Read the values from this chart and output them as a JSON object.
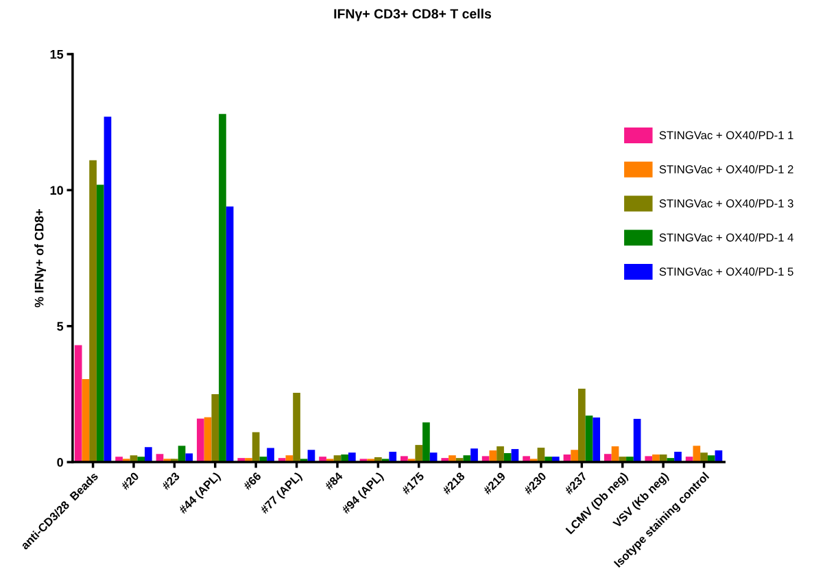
{
  "chart_data": {
    "type": "bar",
    "title": "IFNγ+ CD3+ CD8+ T cells",
    "ylabel": "% IFNγ+ of CD8+",
    "categories": [
      "anti-CD3/28  Beads",
      "#20",
      "#23",
      "#44 (APL)",
      "#66",
      "#77 (APL)",
      "#84",
      "#94 (APL)",
      "#175",
      "#218",
      "#219",
      "#230",
      "#237",
      "LCMV (Db neg)",
      "VSV (Kb neg)",
      "Isotype staining control"
    ],
    "series": [
      {
        "name": "STINGVac + OX40/PD-1 1",
        "color": "#f7198a",
        "values": [
          4.3,
          0.2,
          0.3,
          1.6,
          0.15,
          0.15,
          0.2,
          0.12,
          0.22,
          0.15,
          0.22,
          0.22,
          0.28,
          0.3,
          0.22,
          0.2
        ]
      },
      {
        "name": "STINGVac + OX40/PD-1 2",
        "color": "#ff8000",
        "values": [
          3.05,
          0.12,
          0.12,
          1.65,
          0.15,
          0.25,
          0.12,
          0.12,
          0.12,
          0.25,
          0.43,
          0.12,
          0.45,
          0.58,
          0.28,
          0.6
        ]
      },
      {
        "name": "STINGVac + OX40/PD-1 3",
        "color": "#808000",
        "values": [
          11.1,
          0.25,
          0.12,
          2.5,
          1.1,
          2.55,
          0.25,
          0.18,
          0.63,
          0.15,
          0.58,
          0.53,
          2.7,
          0.2,
          0.28,
          0.35
        ]
      },
      {
        "name": "STINGVac + OX40/PD-1 4",
        "color": "#008000",
        "values": [
          10.2,
          0.2,
          0.6,
          12.8,
          0.2,
          0.12,
          0.28,
          0.12,
          1.46,
          0.25,
          0.33,
          0.2,
          1.71,
          0.2,
          0.15,
          0.25
        ]
      },
      {
        "name": "STINGVac + OX40/PD-1 5",
        "color": "#0000ff",
        "values": [
          12.7,
          0.55,
          0.32,
          9.4,
          0.52,
          0.45,
          0.35,
          0.38,
          0.35,
          0.5,
          0.48,
          0.2,
          1.64,
          1.59,
          0.38,
          0.43
        ]
      }
    ],
    "ylim": [
      0,
      15
    ],
    "yticks": [
      0,
      5,
      10,
      15
    ],
    "grid": false,
    "legend": "right"
  }
}
